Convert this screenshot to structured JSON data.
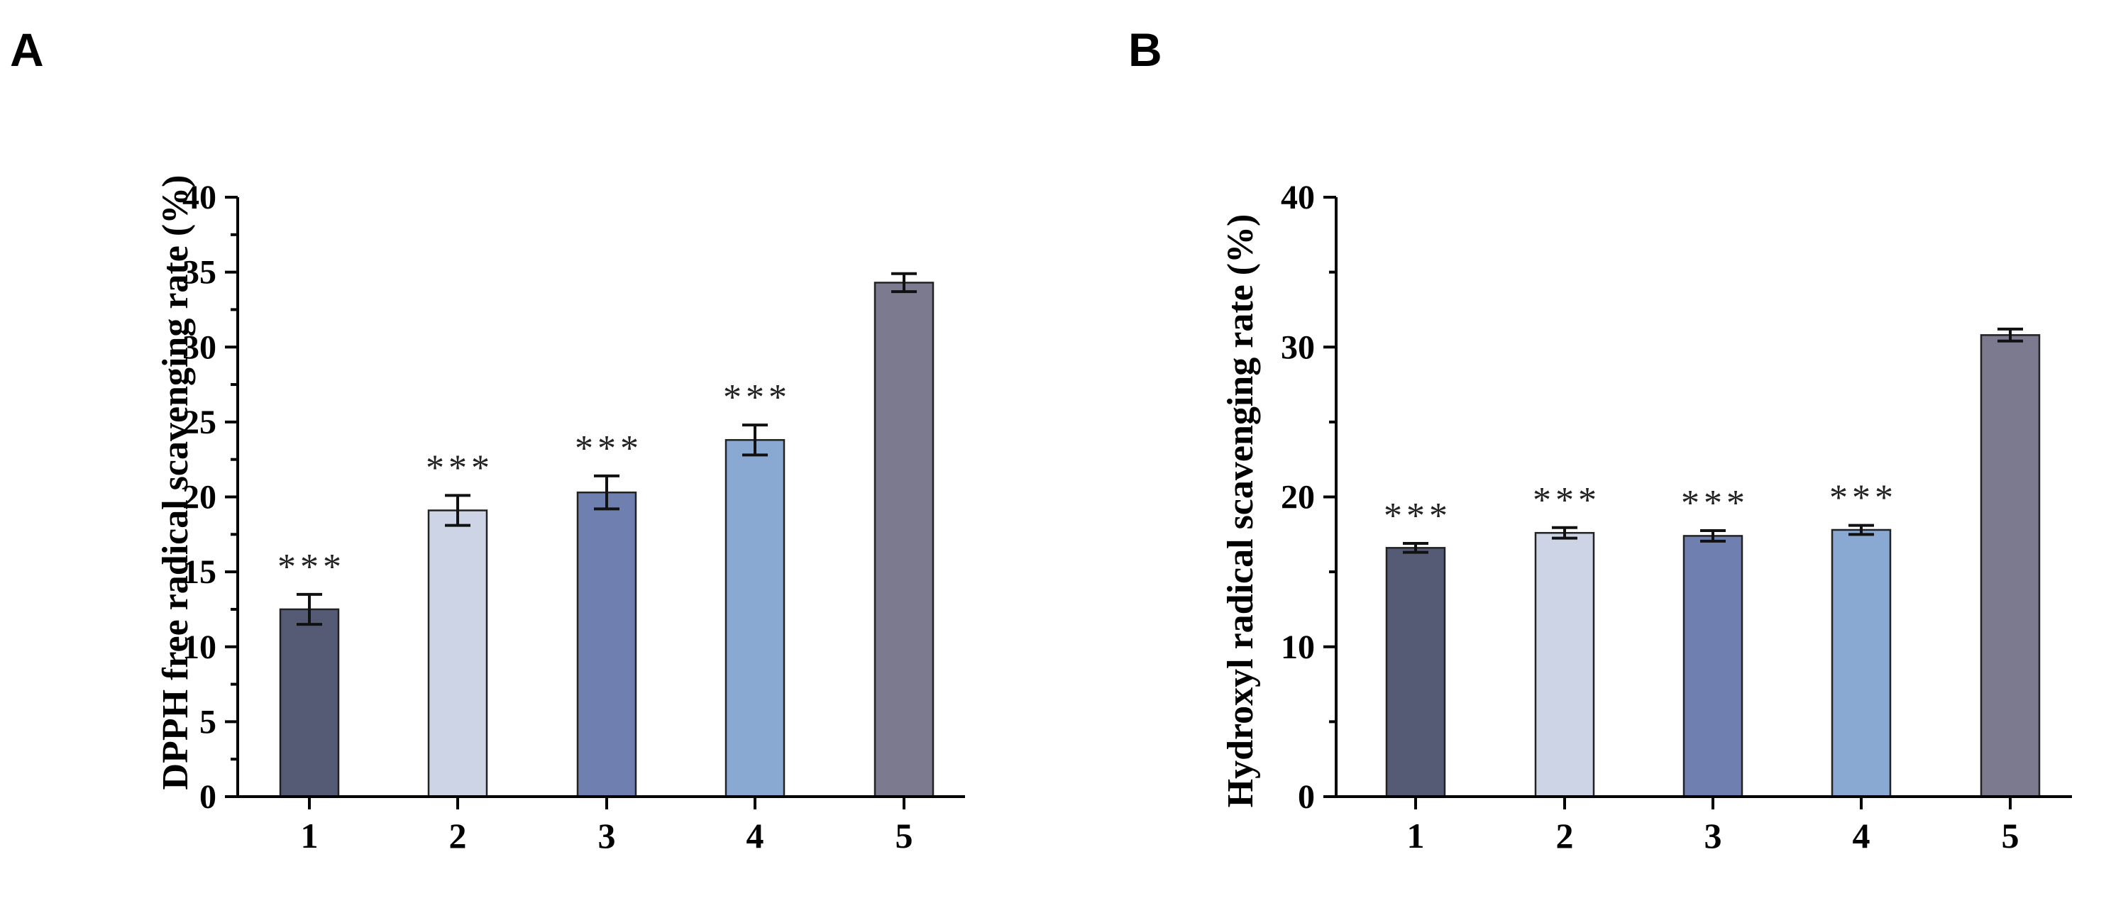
{
  "chart_data": [
    {
      "panel": "A",
      "type": "bar",
      "title": "",
      "xlabel": "",
      "ylabel": "DPPH free radical scavenging rate (%)",
      "categories": [
        "1",
        "2",
        "3",
        "4",
        "5"
      ],
      "values": [
        12.5,
        19.1,
        20.3,
        23.8,
        34.3
      ],
      "errors": [
        1.0,
        1.0,
        1.1,
        1.0,
        0.6
      ],
      "significance": [
        "***",
        "***",
        "***",
        "***",
        ""
      ],
      "ylim": [
        0,
        40
      ],
      "yticks": [
        "0",
        "5",
        "10",
        "15",
        "20",
        "25",
        "30",
        "35",
        "40"
      ],
      "grid": false,
      "colors": [
        "#555b74",
        "#cdd4e6",
        "#6e7fb0",
        "#8aa9d2",
        "#7b7a8e"
      ]
    },
    {
      "panel": "B",
      "type": "bar",
      "title": "",
      "xlabel": "",
      "ylabel": "Hydroxyl radical scavenging rate (%)",
      "categories": [
        "1",
        "2",
        "3",
        "4",
        "5"
      ],
      "values": [
        16.6,
        17.6,
        17.4,
        17.8,
        30.8
      ],
      "errors": [
        0.3,
        0.35,
        0.35,
        0.3,
        0.4
      ],
      "significance": [
        "***",
        "***",
        "***",
        "***",
        ""
      ],
      "ylim": [
        0,
        40
      ],
      "yticks": [
        "0",
        "10",
        "20",
        "30",
        "40"
      ],
      "grid": false,
      "colors": [
        "#555b74",
        "#cdd4e6",
        "#6e7fb0",
        "#8aa9d2",
        "#7b7a8e"
      ]
    }
  ]
}
